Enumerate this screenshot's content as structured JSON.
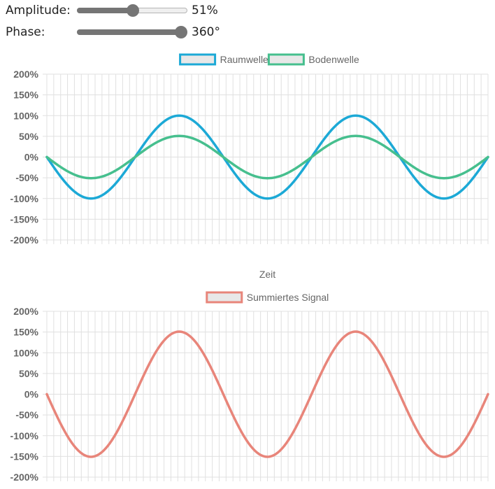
{
  "controls": {
    "amplitude": {
      "label": "Amplitude:",
      "value": 51,
      "min": 0,
      "max": 100,
      "display": "51%"
    },
    "phase": {
      "label": "Phase:",
      "value": 360,
      "min": 0,
      "max": 360,
      "display": "360°"
    }
  },
  "colors": {
    "raumwelle": "#1ca9d6",
    "bodenwelle": "#46bf8e",
    "summiert": "#e8857a",
    "grid": "#e0e0e0",
    "tick_text": "#666666"
  },
  "chart_data": [
    {
      "type": "line",
      "xlabel": "Zeit",
      "ylabel": "",
      "x_range": [
        0,
        100
      ],
      "ylim": [
        -200,
        200
      ],
      "yticks": [
        "200%",
        "150%",
        "100%",
        "50%",
        "0%",
        "-50%",
        "-100%",
        "-150%",
        "-200%"
      ],
      "grid": true,
      "legend": "top-center",
      "series": [
        {
          "name": "Raumwelle",
          "color": "#1ca9d6",
          "amplitude": 100,
          "cycles": 2.5,
          "phase_deg": 180
        },
        {
          "name": "Bodenwelle",
          "color": "#46bf8e",
          "amplitude": 51,
          "cycles": 2.5,
          "phase_deg": 180
        }
      ]
    },
    {
      "type": "line",
      "xlabel": "",
      "ylabel": "",
      "x_range": [
        0,
        100
      ],
      "ylim": [
        -200,
        200
      ],
      "yticks": [
        "200%",
        "150%",
        "100%",
        "50%",
        "0%",
        "-50%",
        "-100%",
        "-150%",
        "-200%"
      ],
      "grid": true,
      "legend": "top-center",
      "series": [
        {
          "name": "Summiertes Signal",
          "color": "#e8857a",
          "amplitude": 151,
          "cycles": 2.5,
          "phase_deg": 180
        }
      ]
    }
  ]
}
